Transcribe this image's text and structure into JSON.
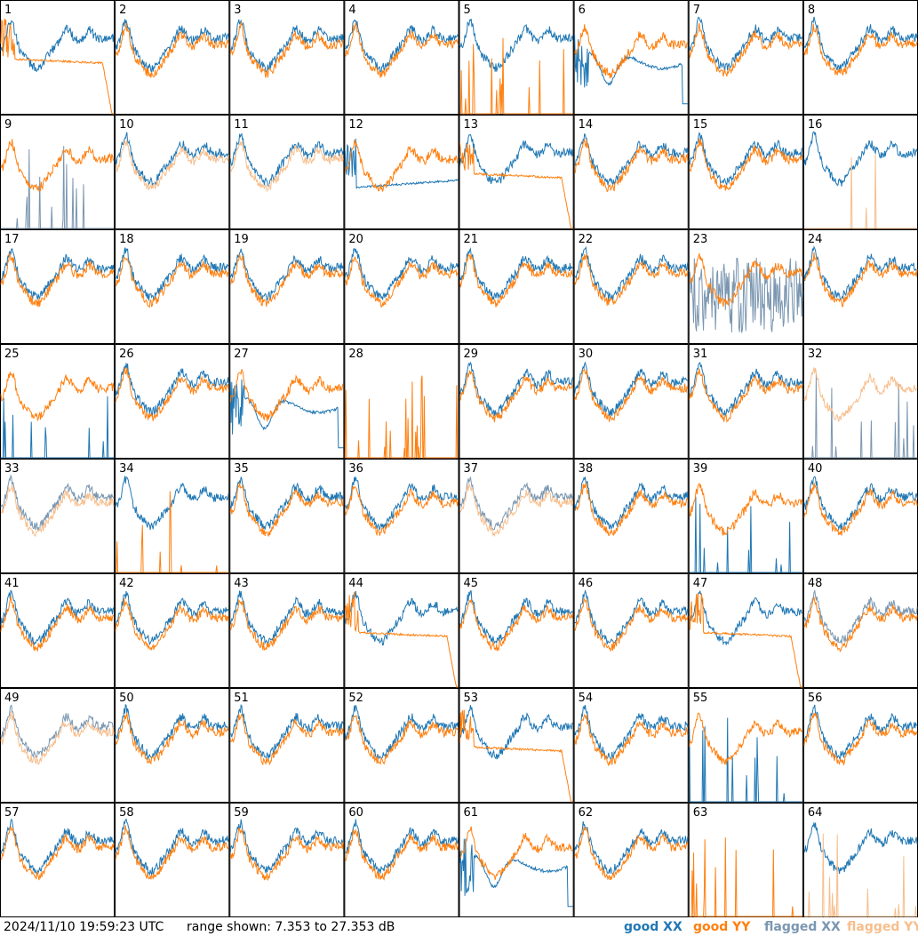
{
  "footer": {
    "timestamp": "2024/11/10 19:59:23 UTC",
    "range_text": "range shown: 7.353 to 27.353 dB"
  },
  "legend": [
    {
      "key": "good_xx",
      "label": "good XX",
      "color": "#1f77b4"
    },
    {
      "key": "good_yy",
      "label": "good YY",
      "color": "#ff7f0e"
    },
    {
      "key": "flagged_xx",
      "label": "flagged XX",
      "color": "#7a96b0"
    },
    {
      "key": "flagged_yy",
      "label": "flagged YY",
      "color": "#f7be8c"
    }
  ],
  "chart_data": {
    "type": "line",
    "grid": "8x8 small multiples",
    "ylim": [
      7.353,
      27.353
    ],
    "yunit": "dB",
    "panels": [
      {
        "id": "1",
        "xx": "good",
        "yy": "good",
        "yy_style": "rolloff"
      },
      {
        "id": "2",
        "xx": "good",
        "yy": "good"
      },
      {
        "id": "3",
        "xx": "good",
        "yy": "good"
      },
      {
        "id": "4",
        "xx": "good",
        "yy": "good"
      },
      {
        "id": "5",
        "xx": "good",
        "yy": "good",
        "yy_style": "spiky"
      },
      {
        "id": "6",
        "xx": "good",
        "yy": "good",
        "xx_style": "dip"
      },
      {
        "id": "7",
        "xx": "good",
        "yy": "good"
      },
      {
        "id": "8",
        "xx": "good",
        "yy": "good"
      },
      {
        "id": "9",
        "xx": "flagged",
        "yy": "good",
        "xx_style": "spiky"
      },
      {
        "id": "10",
        "xx": "good",
        "yy": "flagged"
      },
      {
        "id": "11",
        "xx": "good",
        "yy": "flagged"
      },
      {
        "id": "12",
        "xx": "good",
        "yy": "good",
        "xx_style": "flat"
      },
      {
        "id": "13",
        "xx": "good",
        "yy": "good",
        "yy_style": "rolloff"
      },
      {
        "id": "14",
        "xx": "good",
        "yy": "good"
      },
      {
        "id": "15",
        "xx": "good",
        "yy": "good"
      },
      {
        "id": "16",
        "xx": "good",
        "yy": "flagged",
        "yy_style": "spiky"
      },
      {
        "id": "17",
        "xx": "good",
        "yy": "good"
      },
      {
        "id": "18",
        "xx": "good",
        "yy": "good"
      },
      {
        "id": "19",
        "xx": "good",
        "yy": "good"
      },
      {
        "id": "20",
        "xx": "good",
        "yy": "good"
      },
      {
        "id": "21",
        "xx": "good",
        "yy": "good"
      },
      {
        "id": "22",
        "xx": "good",
        "yy": "good"
      },
      {
        "id": "23",
        "xx": "flagged",
        "yy": "good",
        "xx_style": "noise"
      },
      {
        "id": "24",
        "xx": "good",
        "yy": "good"
      },
      {
        "id": "25",
        "xx": "good",
        "yy": "good",
        "xx_style": "spiky"
      },
      {
        "id": "26",
        "xx": "good",
        "yy": "good"
      },
      {
        "id": "27",
        "xx": "good",
        "yy": "good",
        "xx_style": "dip"
      },
      {
        "id": "28",
        "xx": "none",
        "yy": "good",
        "yy_style": "spiky"
      },
      {
        "id": "29",
        "xx": "good",
        "yy": "good"
      },
      {
        "id": "30",
        "xx": "good",
        "yy": "good"
      },
      {
        "id": "31",
        "xx": "good",
        "yy": "good"
      },
      {
        "id": "32",
        "xx": "flagged",
        "yy": "flagged",
        "xx_style": "spiky"
      },
      {
        "id": "33",
        "xx": "flagged",
        "yy": "flagged"
      },
      {
        "id": "34",
        "xx": "good",
        "yy": "good",
        "yy_style": "spiky"
      },
      {
        "id": "35",
        "xx": "good",
        "yy": "good"
      },
      {
        "id": "36",
        "xx": "good",
        "yy": "good"
      },
      {
        "id": "37",
        "xx": "flagged",
        "yy": "flagged"
      },
      {
        "id": "38",
        "xx": "good",
        "yy": "good"
      },
      {
        "id": "39",
        "xx": "good",
        "yy": "good",
        "xx_style": "spiky"
      },
      {
        "id": "40",
        "xx": "good",
        "yy": "good"
      },
      {
        "id": "41",
        "xx": "good",
        "yy": "good"
      },
      {
        "id": "42",
        "xx": "good",
        "yy": "good"
      },
      {
        "id": "43",
        "xx": "good",
        "yy": "good"
      },
      {
        "id": "44",
        "xx": "good",
        "yy": "good",
        "yy_style": "rolloff"
      },
      {
        "id": "45",
        "xx": "good",
        "yy": "good"
      },
      {
        "id": "46",
        "xx": "good",
        "yy": "good"
      },
      {
        "id": "47",
        "xx": "good",
        "yy": "good",
        "yy_style": "rolloff"
      },
      {
        "id": "48",
        "xx": "flagged",
        "yy": "good"
      },
      {
        "id": "49",
        "xx": "flagged",
        "yy": "flagged"
      },
      {
        "id": "50",
        "xx": "good",
        "yy": "good"
      },
      {
        "id": "51",
        "xx": "good",
        "yy": "good"
      },
      {
        "id": "52",
        "xx": "good",
        "yy": "good"
      },
      {
        "id": "53",
        "xx": "good",
        "yy": "good",
        "yy_style": "rolloff"
      },
      {
        "id": "54",
        "xx": "good",
        "yy": "good"
      },
      {
        "id": "55",
        "xx": "good",
        "yy": "good",
        "xx_style": "spiky"
      },
      {
        "id": "56",
        "xx": "good",
        "yy": "good"
      },
      {
        "id": "57",
        "xx": "good",
        "yy": "good"
      },
      {
        "id": "58",
        "xx": "good",
        "yy": "good"
      },
      {
        "id": "59",
        "xx": "good",
        "yy": "good"
      },
      {
        "id": "60",
        "xx": "good",
        "yy": "good"
      },
      {
        "id": "61",
        "xx": "good",
        "yy": "good",
        "xx_style": "dip"
      },
      {
        "id": "62",
        "xx": "good",
        "yy": "good"
      },
      {
        "id": "63",
        "xx": "none",
        "yy": "good",
        "yy_style": "spiky"
      },
      {
        "id": "64",
        "xx": "good",
        "yy": "flagged",
        "yy_style": "spiky"
      }
    ]
  }
}
